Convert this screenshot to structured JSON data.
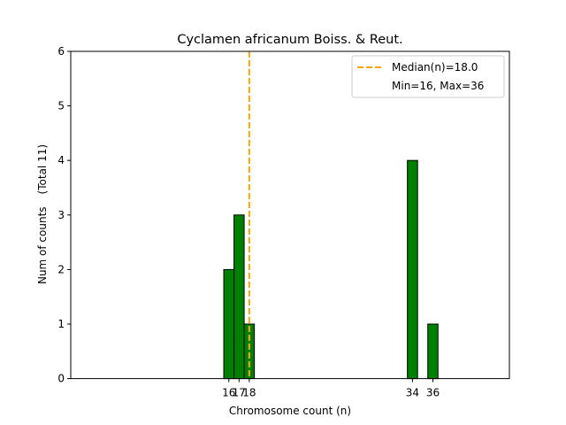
{
  "chart_data": {
    "type": "bar",
    "title": "Cyclamen africanum Boiss. & Reut.",
    "xlabel": "Chromosome count (n)",
    "ylabel": "Num of counts",
    "ylabel_total": "(Total 11)",
    "x": [
      16,
      17,
      18,
      34,
      36
    ],
    "values": [
      2,
      3,
      1,
      4,
      1
    ],
    "xticks": [
      16,
      17,
      18,
      34,
      36
    ],
    "yticks": [
      0,
      1,
      2,
      3,
      4,
      5,
      6
    ],
    "xlim": [
      0.5,
      43.5
    ],
    "ylim": [
      0,
      6
    ],
    "bar_color": "#008000",
    "bar_edge_color": "#000000",
    "median": 18.0,
    "median_color": "#FFA500",
    "legend": {
      "position": "top-right",
      "median_label": "Median(n)=18.0",
      "minmax_label": "Min=16, Max=36"
    }
  }
}
